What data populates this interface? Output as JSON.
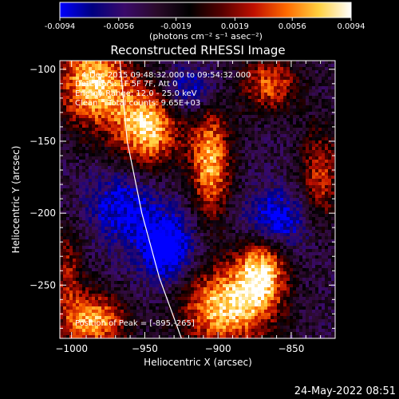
{
  "colorbar": {
    "tick_labels": [
      "-0.0094",
      "-0.0056",
      "-0.0019",
      "0.0019",
      "0.0056",
      "0.0094"
    ],
    "units": "(photons cm⁻² s⁻¹ asec⁻²)",
    "colormap": [
      "#0000ff",
      "#000080",
      "#3a0a6a",
      "#2a0a2a",
      "#000000",
      "#550000",
      "#c01000",
      "#ff6a00",
      "#ffd040",
      "#ffffff"
    ]
  },
  "chart_data": {
    "type": "heatmap",
    "title": "Reconstructed RHESSI Image",
    "xlabel": "Heliocentric X (arcsec)",
    "ylabel": "Heliocentric Y (arcsec)",
    "xlim": [
      -1008,
      -820
    ],
    "ylim": [
      -287,
      -94
    ],
    "x_ticks": [
      -1000,
      -950,
      -900,
      -850
    ],
    "y_ticks": [
      -100,
      -150,
      -200,
      -250
    ],
    "x_tick_labels": [
      "−1000",
      "−950",
      "−900",
      "−850"
    ],
    "y_tick_labels": [
      "−100",
      "−150",
      "−200",
      "−250"
    ],
    "value_range": [
      -0.0094,
      0.0094
    ],
    "sources": [
      {
        "x": -985,
        "y": -110,
        "sx": 18,
        "sy": 22,
        "amp": 1.0
      },
      {
        "x": -948,
        "y": -140,
        "sx": 16,
        "sy": 20,
        "amp": 1.0
      },
      {
        "x": -905,
        "y": -165,
        "sx": 10,
        "sy": 28,
        "amp": 0.9
      },
      {
        "x": -865,
        "y": -110,
        "sx": 14,
        "sy": 14,
        "amp": 0.7
      },
      {
        "x": -830,
        "y": -175,
        "sx": 10,
        "sy": 25,
        "amp": 0.6
      },
      {
        "x": -895,
        "y": -265,
        "sx": 22,
        "sy": 20,
        "amp": 1.0
      },
      {
        "x": -870,
        "y": -240,
        "sx": 12,
        "sy": 18,
        "amp": 0.9
      },
      {
        "x": -985,
        "y": -275,
        "sx": 16,
        "sy": 14,
        "amp": 0.9
      },
      {
        "x": -1003,
        "y": -240,
        "sx": 8,
        "sy": 22,
        "amp": 0.5
      },
      {
        "x": -935,
        "y": -225,
        "sx": 14,
        "sy": 18,
        "amp": -0.7
      },
      {
        "x": -860,
        "y": -205,
        "sx": 16,
        "sy": 14,
        "amp": -0.6
      },
      {
        "x": -965,
        "y": -195,
        "sx": 16,
        "sy": 18,
        "amp": -0.5
      },
      {
        "x": -920,
        "y": -115,
        "sx": 14,
        "sy": 12,
        "amp": -0.5
      }
    ],
    "limb_points": [
      [
        -967,
        -94
      ],
      [
        -962,
        -150
      ],
      [
        -952,
        -200
      ],
      [
        -940,
        -245
      ],
      [
        -925,
        -287
      ]
    ],
    "annotations": [
      "4-Dec-2015 09:48:32.000 to 09:54:32.000",
      "Detectors: 1F 5F 7F, Att 0",
      "Energy Range: 12.0 - 25.0 keV",
      "Clean    Total counts: 9.65E+03"
    ],
    "peak_label": "Position of Peak = [-895,-265]",
    "timestamp": "24-May-2022 08:51"
  }
}
